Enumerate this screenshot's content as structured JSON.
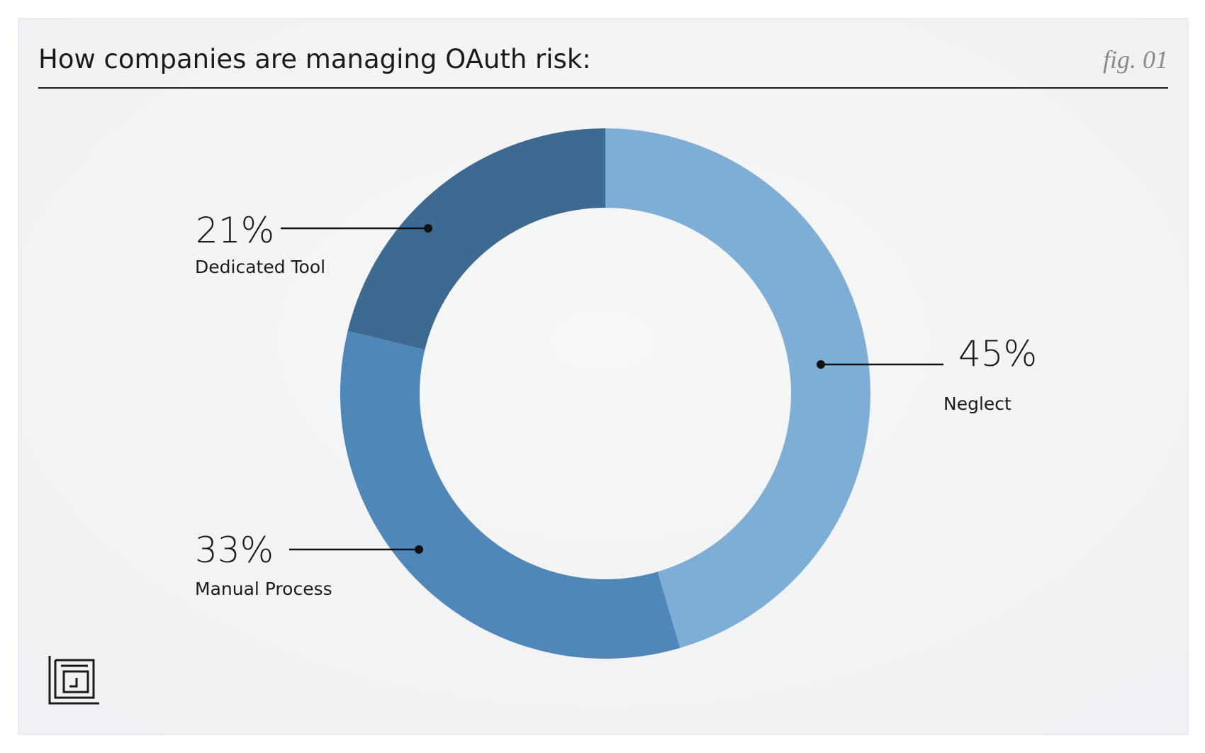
{
  "chart_data": {
    "type": "donut",
    "title": "How companies are managing OAuth risk:",
    "figure_label": "fig. 01",
    "categories": [
      "Neglect",
      "Manual Process",
      "Dedicated Tool"
    ],
    "values": [
      45,
      33,
      21
    ],
    "value_labels": [
      "45%",
      "33%",
      "21%"
    ],
    "colors": [
      "#7eadd6",
      "#4f87b8",
      "#3d6a91"
    ]
  }
}
